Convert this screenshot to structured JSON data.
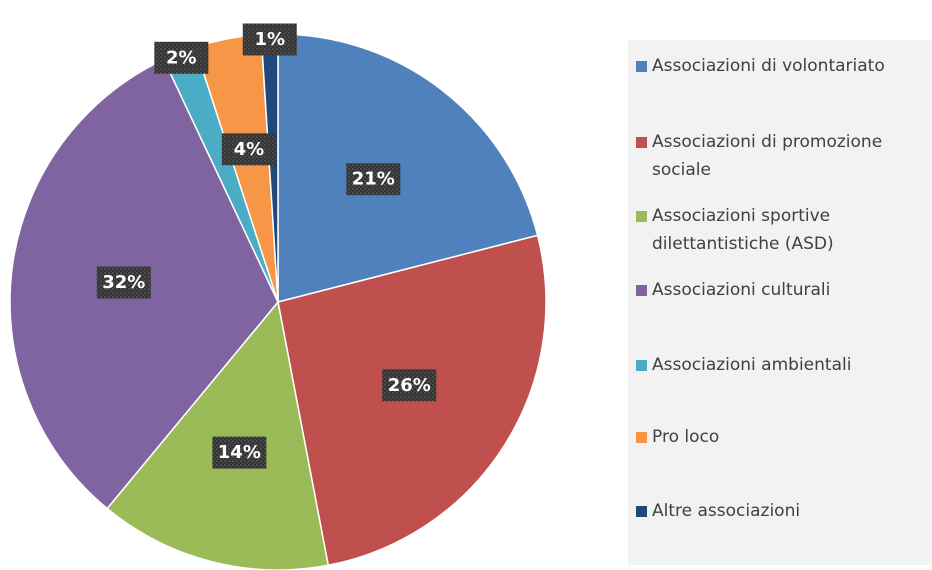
{
  "chart_data": {
    "type": "pie",
    "categories": [
      "Associazioni di volontariato",
      "Associazioni di promozione sociale",
      "Associazioni sportive dilettantistiche (ASD)",
      "Associazioni culturali",
      "Associazioni ambientali",
      "Pro loco",
      "Altre associazioni"
    ],
    "values": [
      21,
      26,
      14,
      32,
      2,
      4,
      1
    ],
    "value_labels": [
      "21%",
      "26%",
      "14%",
      "32%",
      "2%",
      "4%",
      "1%"
    ],
    "colors": [
      "#4f81bd",
      "#c0504d",
      "#9bbb59",
      "#8064a2",
      "#4bacc6",
      "#f79646",
      "#1f497d"
    ],
    "legend": "right"
  }
}
